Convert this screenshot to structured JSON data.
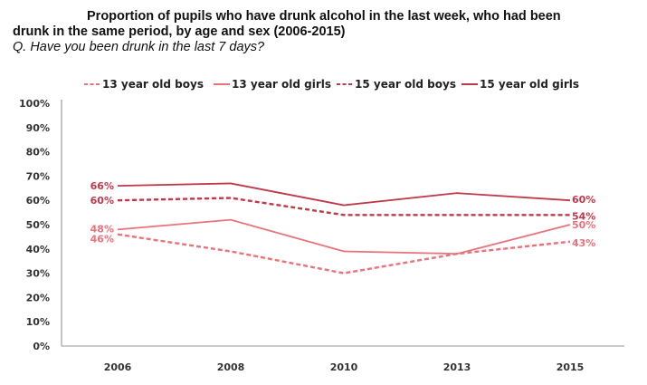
{
  "chart_data": {
    "type": "line",
    "title": "Proportion of pupils who have drunk alcohol in the last week, who had been drunk in the same period, by age and sex (2006-2015)",
    "title_line1": "Proportion of pupils who have drunk alcohol in the last week, who had been",
    "title_line2": "drunk in the same period, by age and sex (2006-2015)",
    "subtitle": "Q. Have you been drunk in the last 7 days?",
    "xlabel": "",
    "ylabel": "",
    "categories": [
      "2006",
      "2008",
      "2010",
      "2013",
      "2015"
    ],
    "ylim": [
      0,
      100
    ],
    "yticks": [
      "0%",
      "10%",
      "20%",
      "30%",
      "40%",
      "50%",
      "60%",
      "70%",
      "80%",
      "90%",
      "100%"
    ],
    "grid": false,
    "legend_position": "top",
    "series": [
      {
        "name": "13 year old boys",
        "values": [
          46,
          39,
          30,
          38,
          43
        ],
        "color": "#E8737B",
        "dashed": true,
        "labels": {
          "first": "46%",
          "last": "43%"
        }
      },
      {
        "name": "13 year old girls",
        "values": [
          48,
          52,
          39,
          38,
          50
        ],
        "color": "#E8737B",
        "dashed": false,
        "labels": {
          "first": "48%",
          "last": "50%"
        }
      },
      {
        "name": "15 year old boys",
        "values": [
          60,
          61,
          54,
          54,
          54
        ],
        "color": "#C0394B",
        "dashed": true,
        "labels": {
          "first": "60%",
          "last": "54%"
        }
      },
      {
        "name": "15 year old girls",
        "values": [
          66,
          67,
          58,
          63,
          60
        ],
        "color": "#C0394B",
        "dashed": false,
        "labels": {
          "first": "66%",
          "last": "60%"
        }
      }
    ]
  }
}
